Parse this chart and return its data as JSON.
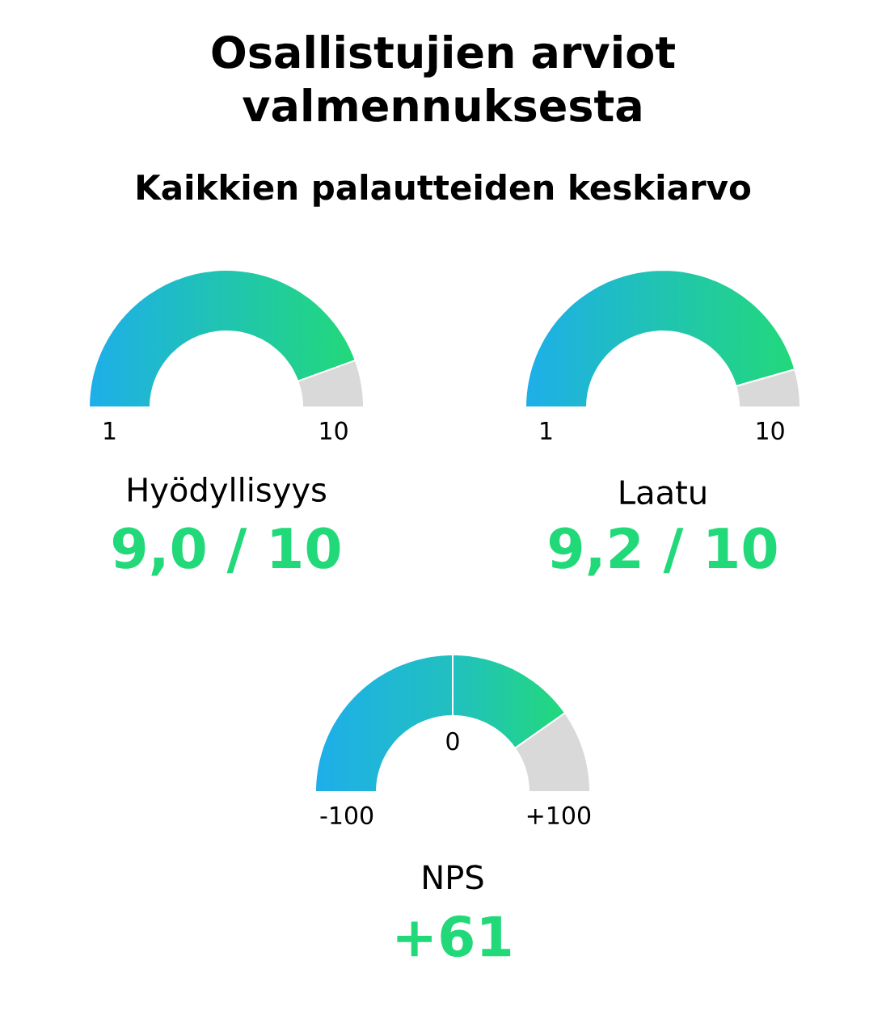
{
  "chart_data": [
    {
      "type": "other",
      "title": "Osallistujien arviot valmennuksesta",
      "subtitle": "Kaikkien palautteiden keskiarvo"
    },
    {
      "type": "donut",
      "title": "Hyödyllisyys",
      "categories": [
        null,
        null
      ],
      "values": [
        88.9,
        11.1
      ],
      "colors": [
        "#22d97a",
        "#d9d9d9"
      ],
      "annotations": [
        "1",
        "10",
        "9,0 / 10"
      ]
    },
    {
      "type": "donut",
      "title": "Laatu",
      "categories": [
        null,
        null
      ],
      "values": [
        91.1,
        8.9
      ],
      "colors": [
        "#22d97a",
        "#d9d9d9"
      ],
      "annotations": [
        "1",
        "10",
        "9,2 / 10"
      ]
    },
    {
      "type": "donut",
      "title": "NPS",
      "categories": [
        null,
        null,
        null
      ],
      "values": [
        50,
        30.5,
        19.5
      ],
      "colors": [
        "#21c0c0",
        "#22d97a",
        "#d9d9d9"
      ],
      "annotations": [
        "-100",
        "0",
        "+100",
        "+61"
      ]
    }
  ]
}
